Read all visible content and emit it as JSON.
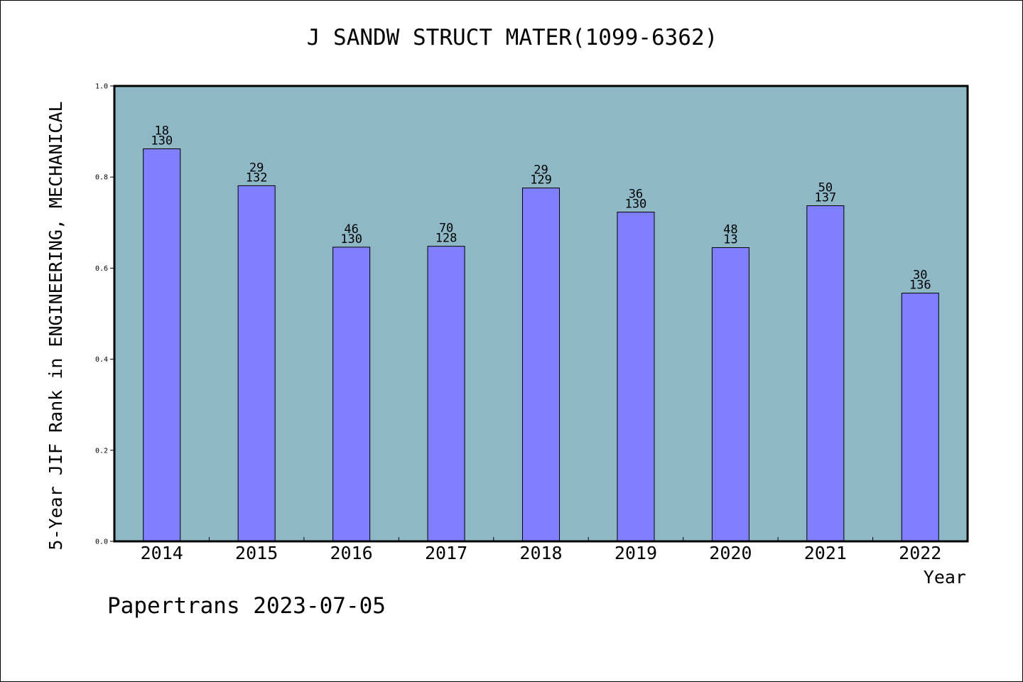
{
  "chart_data": {
    "type": "bar",
    "title": "J SANDW STRUCT MATER(1099-6362)",
    "xlabel": "Year",
    "ylabel": "5-Year JIF Rank in ENGINEERING, MECHANICAL",
    "categories": [
      "2014",
      "2015",
      "2016",
      "2017",
      "2018",
      "2019",
      "2020",
      "2021",
      "2022"
    ],
    "values": [
      0.862,
      0.781,
      0.646,
      0.648,
      0.776,
      0.723,
      0.645,
      0.737,
      0.545
    ],
    "labels_top": [
      "18",
      "29",
      "46",
      "70",
      "29",
      "36",
      "48",
      "50",
      "30"
    ],
    "labels_bottom": [
      "130",
      "132",
      "130",
      "128",
      "129",
      "130",
      "13",
      "137",
      "136"
    ],
    "ylim": [
      0,
      1.0
    ],
    "yticks": [
      "0.0",
      "0.2",
      "0.4",
      "0.6",
      "0.8",
      "1.0"
    ],
    "grid": false,
    "colors": {
      "plot_background": "#8fb8c7",
      "bar": "#8080ff",
      "axis": "#000000"
    }
  },
  "footer": {
    "text": "Papertrans 2023-07-05"
  }
}
